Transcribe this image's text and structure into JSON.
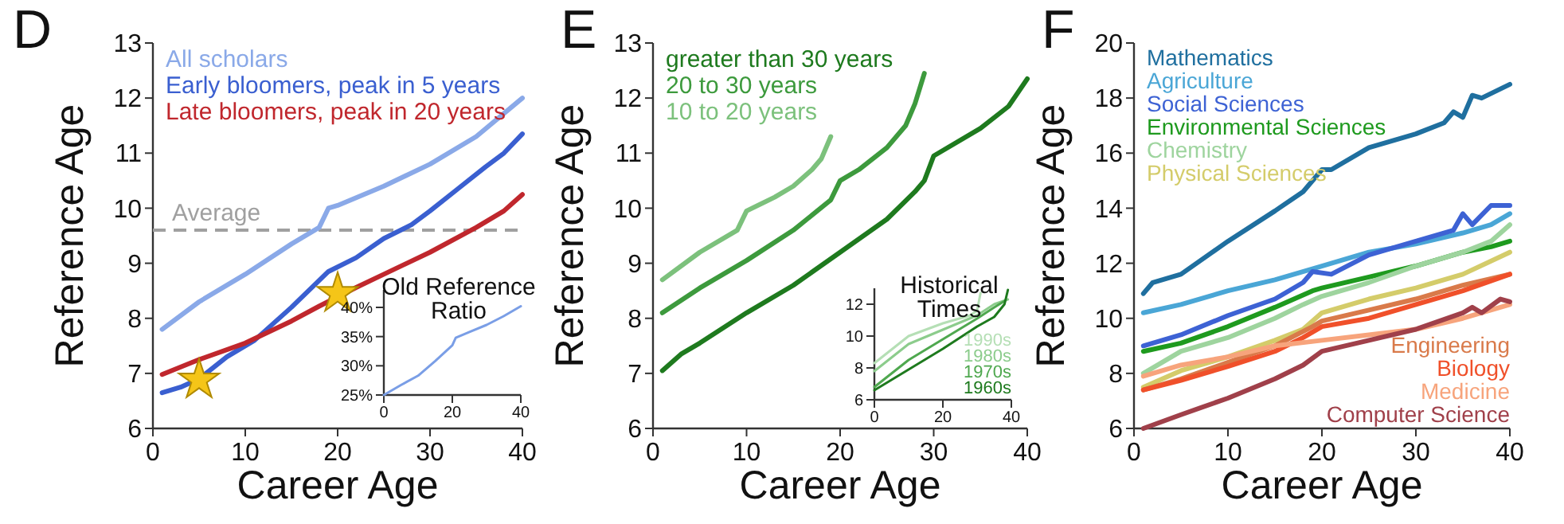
{
  "chart_data": [
    {
      "type": "line",
      "title": "D",
      "xlabel": "Career Age",
      "ylabel": "Reference Age",
      "xlim": [
        0,
        40
      ],
      "ylim": [
        6,
        13
      ],
      "xticks": [
        0,
        10,
        20,
        30,
        40
      ],
      "yticks": [
        6,
        7,
        8,
        9,
        10,
        11,
        12,
        13
      ],
      "legend": "top left",
      "ref_lines": [
        {
          "axis": "y",
          "value": 9.6,
          "label": "Average",
          "color": "#a0a0a0",
          "line_style": "dashed"
        }
      ],
      "series": [
        {
          "name": "All scholars",
          "color": "#8aa9e8",
          "x": [
            1,
            5,
            10,
            15,
            18,
            19,
            20,
            25,
            30,
            35,
            40
          ],
          "values": [
            7.8,
            8.3,
            8.8,
            9.35,
            9.65,
            10.0,
            10.05,
            10.4,
            10.8,
            11.3,
            12.0
          ]
        },
        {
          "name": "Early bloomers, peak in 5 years",
          "color": "#3a5fd0",
          "x": [
            1,
            3,
            5,
            8,
            11,
            15,
            19,
            22,
            25,
            28,
            30,
            33,
            36,
            38,
            40
          ],
          "values": [
            6.65,
            6.75,
            6.9,
            7.3,
            7.6,
            8.2,
            8.85,
            9.1,
            9.45,
            9.7,
            9.95,
            10.35,
            10.75,
            11.0,
            11.35
          ]
        },
        {
          "name": "Late bloomers, peak in 20 years",
          "color": "#c0272d",
          "x": [
            1,
            5,
            10,
            15,
            18,
            22,
            25,
            30,
            35,
            38,
            40
          ],
          "values": [
            6.98,
            7.25,
            7.55,
            7.95,
            8.22,
            8.56,
            8.8,
            9.2,
            9.65,
            9.95,
            10.25
          ]
        },
        {
          "type": "scatter",
          "marker": "star",
          "color": "#f5c518",
          "x": [
            5,
            20
          ],
          "values": [
            6.88,
            8.45
          ]
        }
      ]
    },
    {
      "type": "line",
      "title": "Old Reference\nRatio",
      "xlim": [
        0,
        40
      ],
      "ylim": [
        25,
        43
      ],
      "xticks": [
        0,
        20,
        40
      ],
      "yticks": [
        {
          "value": 25,
          "label": "25%"
        },
        {
          "value": 30,
          "label": "30%"
        },
        {
          "value": 35,
          "label": "35%"
        },
        {
          "value": 40,
          "label": "40%"
        }
      ],
      "series": [
        {
          "color": "#7a9ee6",
          "x": [
            0,
            5,
            10,
            15,
            20,
            21,
            25,
            30,
            35,
            40
          ],
          "values": [
            25,
            26.7,
            28.3,
            30.8,
            33.5,
            34.8,
            35.8,
            37,
            38.5,
            40.2
          ]
        }
      ]
    },
    {
      "type": "line",
      "title": "E",
      "xlabel": "Career Age",
      "ylabel": "Reference Age",
      "xlim": [
        0,
        40
      ],
      "ylim": [
        6,
        13
      ],
      "xticks": [
        0,
        10,
        20,
        30,
        40
      ],
      "yticks": [
        6,
        7,
        8,
        9,
        10,
        11,
        12,
        13
      ],
      "legend": "top left",
      "series": [
        {
          "name": "greater than 30 years",
          "color": "#1e7a1e",
          "x": [
            1,
            3,
            5,
            10,
            15,
            20,
            25,
            28,
            29,
            30,
            35,
            38,
            40
          ],
          "values": [
            7.05,
            7.35,
            7.55,
            8.1,
            8.6,
            9.2,
            9.8,
            10.3,
            10.5,
            10.95,
            11.45,
            11.85,
            12.35
          ]
        },
        {
          "name": "20 to 30 years",
          "color": "#3d9a3d",
          "x": [
            1,
            5,
            10,
            15,
            19,
            20,
            22,
            25,
            27,
            28,
            29
          ],
          "values": [
            8.1,
            8.55,
            9.05,
            9.6,
            10.15,
            10.5,
            10.7,
            11.1,
            11.5,
            11.9,
            12.45
          ]
        },
        {
          "name": "10 to 20 years",
          "color": "#7cc17c",
          "x": [
            1,
            5,
            9,
            10,
            13,
            15,
            17,
            18,
            19
          ],
          "values": [
            8.7,
            9.2,
            9.6,
            9.95,
            10.2,
            10.4,
            10.7,
            10.9,
            11.3
          ]
        }
      ]
    },
    {
      "type": "line",
      "title": "Historical\nTimes",
      "xlim": [
        0,
        40
      ],
      "ylim": [
        6,
        13
      ],
      "xticks": [
        0,
        20,
        40
      ],
      "yticks": [
        6,
        8,
        10,
        12
      ],
      "legend": "bottom right",
      "series": [
        {
          "name": "1990s",
          "color": "#b5dfb5",
          "x": [
            0,
            10,
            20,
            28,
            30,
            31
          ],
          "values": [
            8.3,
            10.0,
            10.8,
            11.3,
            11.6,
            12.7
          ]
        },
        {
          "name": "1980s",
          "color": "#8ccc8c",
          "x": [
            0,
            10,
            20,
            30,
            35,
            39
          ],
          "values": [
            7.8,
            9.5,
            10.4,
            11.3,
            12.0,
            12.3
          ]
        },
        {
          "name": "1970s",
          "color": "#4fa84f",
          "x": [
            0,
            10,
            20,
            30,
            35,
            38
          ],
          "values": [
            6.8,
            8.5,
            9.8,
            11.1,
            11.8,
            12.2
          ]
        },
        {
          "name": "1960s",
          "color": "#1e7a1e",
          "x": [
            0,
            10,
            20,
            30,
            35,
            38,
            39
          ],
          "values": [
            6.6,
            7.9,
            9.2,
            10.6,
            11.2,
            12.0,
            12.9
          ]
        }
      ]
    },
    {
      "type": "line",
      "title": "F",
      "xlabel": "Career Age",
      "ylabel": "Reference Age",
      "xlim": [
        0,
        40
      ],
      "ylim": [
        6,
        20
      ],
      "xticks": [
        0,
        10,
        20,
        30,
        40
      ],
      "yticks": [
        6,
        8,
        10,
        12,
        14,
        16,
        18,
        20
      ],
      "legend": "right",
      "series": [
        {
          "name": "Mathematics",
          "color": "#1f6f9f",
          "x": [
            1,
            2,
            5,
            10,
            15,
            18,
            20,
            21,
            25,
            30,
            33,
            34,
            35,
            36,
            37,
            40
          ],
          "values": [
            10.9,
            11.3,
            11.6,
            12.8,
            13.9,
            14.6,
            15.4,
            15.4,
            16.2,
            16.7,
            17.1,
            17.5,
            17.3,
            18.1,
            18.0,
            18.5
          ]
        },
        {
          "name": "Agriculture",
          "color": "#4aa6d6",
          "x": [
            1,
            5,
            10,
            15,
            20,
            25,
            30,
            35,
            38,
            40
          ],
          "values": [
            10.2,
            10.5,
            11.0,
            11.4,
            11.9,
            12.4,
            12.7,
            13.1,
            13.4,
            13.8
          ]
        },
        {
          "name": "Social Sciences",
          "color": "#3d62d4",
          "x": [
            1,
            5,
            10,
            15,
            18,
            19,
            21,
            25,
            30,
            34,
            35,
            36,
            38,
            40
          ],
          "values": [
            9.0,
            9.4,
            10.1,
            10.7,
            11.3,
            11.7,
            11.6,
            12.3,
            12.8,
            13.2,
            13.8,
            13.4,
            14.1,
            14.1
          ]
        },
        {
          "name": "Environmental Sciences",
          "color": "#1e9a1e",
          "x": [
            1,
            5,
            10,
            15,
            19,
            20,
            25,
            30,
            35,
            38,
            40
          ],
          "values": [
            8.8,
            9.1,
            9.7,
            10.4,
            11.0,
            11.1,
            11.5,
            11.9,
            12.4,
            12.6,
            12.8
          ]
        },
        {
          "name": "Chemistry",
          "color": "#9ed49e",
          "x": [
            1,
            5,
            10,
            15,
            18,
            20,
            25,
            30,
            35,
            38,
            40
          ],
          "values": [
            8.0,
            8.8,
            9.3,
            10.0,
            10.5,
            10.8,
            11.3,
            11.9,
            12.4,
            12.8,
            13.4
          ]
        },
        {
          "name": "Physical Sciences",
          "color": "#d4cc6a",
          "x": [
            1,
            5,
            10,
            15,
            18,
            20,
            25,
            30,
            35,
            40
          ],
          "values": [
            7.5,
            8.1,
            8.6,
            9.2,
            9.6,
            10.2,
            10.7,
            11.1,
            11.6,
            12.4
          ]
        },
        {
          "name": "Engineering",
          "color": "#d97a4a",
          "x": [
            1,
            5,
            10,
            15,
            19,
            20,
            25,
            30,
            35,
            40
          ],
          "values": [
            7.4,
            7.8,
            8.4,
            9.0,
            9.7,
            9.9,
            10.3,
            10.7,
            11.2,
            11.6
          ]
        },
        {
          "name": "Biology",
          "color": "#f0502a",
          "x": [
            1,
            5,
            10,
            15,
            18,
            20,
            25,
            30,
            35,
            40
          ],
          "values": [
            7.4,
            7.75,
            8.25,
            8.8,
            9.3,
            9.7,
            10.0,
            10.5,
            11.0,
            11.6
          ]
        },
        {
          "name": "Medicine",
          "color": "#f7a47c",
          "x": [
            1,
            5,
            10,
            15,
            20,
            25,
            30,
            35,
            40
          ],
          "values": [
            7.9,
            8.3,
            8.6,
            9.0,
            9.2,
            9.4,
            9.6,
            10.0,
            10.5
          ]
        },
        {
          "name": "Computer Science",
          "color": "#a0404a",
          "x": [
            1,
            5,
            10,
            15,
            18,
            20,
            25,
            30,
            35,
            36,
            37,
            39,
            40
          ],
          "values": [
            6.0,
            6.5,
            7.1,
            7.8,
            8.3,
            8.8,
            9.2,
            9.6,
            10.2,
            10.4,
            10.2,
            10.7,
            10.6
          ]
        }
      ]
    }
  ]
}
